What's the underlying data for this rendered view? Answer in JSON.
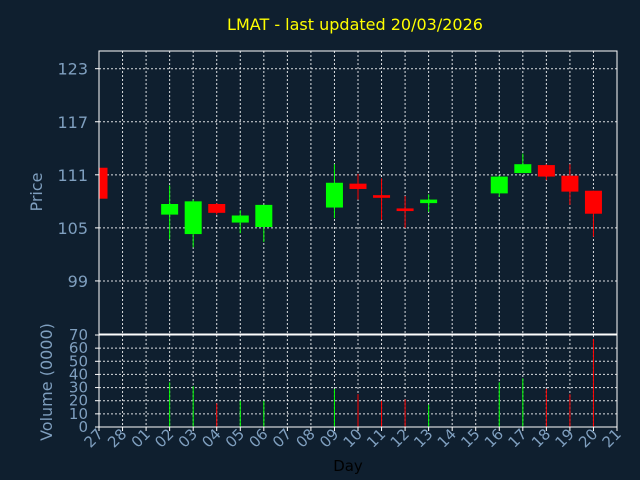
{
  "chart_data": {
    "title": "LMAT - last updated 20/03/2026",
    "type": "candlestick",
    "up_color": "#00ff00",
    "down_color": "#ff0000",
    "background": "#0f1f2f",
    "price_panel": {
      "ylabel": "Price",
      "ylim": [
        93,
        125
      ],
      "yticks": [
        99,
        105,
        111,
        117,
        123
      ],
      "grid": true
    },
    "volume_panel": {
      "ylabel": "Volume (0000)",
      "ylim": [
        0,
        70
      ],
      "yticks": [
        0,
        10,
        20,
        30,
        40,
        50,
        60,
        70
      ],
      "grid": true
    },
    "xlabel": "Day",
    "x_ticks": [
      "27",
      "28",
      "01",
      "02",
      "03",
      "04",
      "05",
      "06",
      "07",
      "08",
      "09",
      "10",
      "11",
      "12",
      "13",
      "14",
      "15",
      "16",
      "17",
      "18",
      "19",
      "20",
      "21"
    ],
    "candles": [
      {
        "day": "27",
        "open": 111.8,
        "high": 112.0,
        "low": 108.2,
        "close": 108.3,
        "volume": 0
      },
      {
        "day": "02",
        "open": 106.5,
        "high": 109.8,
        "low": 103.7,
        "close": 107.7,
        "volume": 34
      },
      {
        "day": "03",
        "open": 104.3,
        "high": 108.2,
        "low": 102.8,
        "close": 108.0,
        "volume": 31
      },
      {
        "day": "04",
        "open": 107.7,
        "high": 107.8,
        "low": 106.5,
        "close": 106.7,
        "volume": 18
      },
      {
        "day": "05",
        "open": 105.6,
        "high": 107.0,
        "low": 104.4,
        "close": 106.4,
        "volume": 20
      },
      {
        "day": "06",
        "open": 105.1,
        "high": 107.6,
        "low": 103.4,
        "close": 107.6,
        "volume": 20
      },
      {
        "day": "09",
        "open": 107.3,
        "high": 112.2,
        "low": 106.1,
        "close": 110.1,
        "volume": 29
      },
      {
        "day": "10",
        "open": 110.0,
        "high": 111.1,
        "low": 108.2,
        "close": 109.4,
        "volume": 25
      },
      {
        "day": "11",
        "open": 108.7,
        "high": 110.6,
        "low": 105.9,
        "close": 108.4,
        "volume": 20
      },
      {
        "day": "12",
        "open": 107.2,
        "high": 108.6,
        "low": 105.0,
        "close": 106.9,
        "volume": 21
      },
      {
        "day": "13",
        "open": 107.8,
        "high": 108.8,
        "low": 106.8,
        "close": 108.2,
        "volume": 17
      },
      {
        "day": "16",
        "open": 108.9,
        "high": 110.9,
        "low": 108.5,
        "close": 110.8,
        "volume": 34
      },
      {
        "day": "17",
        "open": 111.2,
        "high": 113.4,
        "low": 111.2,
        "close": 112.2,
        "volume": 37
      },
      {
        "day": "18",
        "open": 112.1,
        "high": 112.2,
        "low": 110.4,
        "close": 110.8,
        "volume": 29
      },
      {
        "day": "19",
        "open": 110.9,
        "high": 112.2,
        "low": 107.6,
        "close": 109.1,
        "volume": 25
      },
      {
        "day": "20",
        "open": 109.2,
        "high": 109.2,
        "low": 104.0,
        "close": 106.6,
        "volume": 67
      }
    ]
  }
}
